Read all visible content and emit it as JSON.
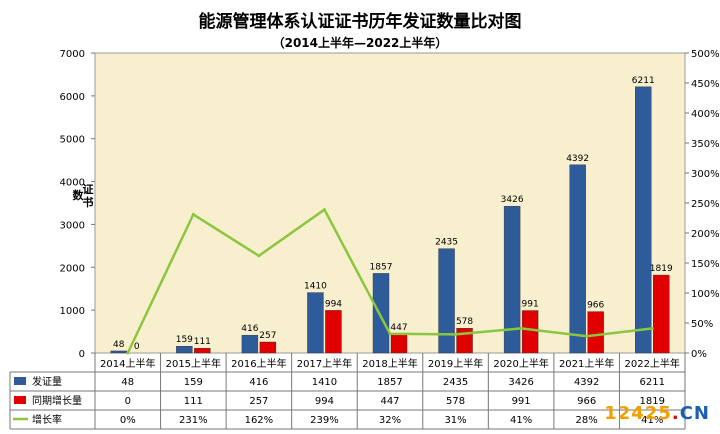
{
  "chart_data": {
    "type": "bar",
    "title": "能源管理体系认证证书历年发证数量比对图",
    "subtitle": "（2014上半年—2022上半年）",
    "ylabel": "证书数",
    "categories": [
      "2014上半年",
      "2015上半年",
      "2016上半年",
      "2017上半年",
      "2018上半年",
      "2019上半年",
      "2020上半年",
      "2021上半年",
      "2022上半年"
    ],
    "series": [
      {
        "name": "发证量",
        "kind": "bar",
        "axis": "left",
        "color": "#2e5c9a",
        "values": [
          48,
          159,
          416,
          1410,
          1857,
          2435,
          3426,
          4392,
          6211
        ]
      },
      {
        "name": "同期增长量",
        "kind": "bar",
        "axis": "left",
        "color": "#e00000",
        "values": [
          0,
          111,
          257,
          994,
          447,
          578,
          991,
          966,
          1819
        ]
      },
      {
        "name": "增长率",
        "kind": "line",
        "axis": "right",
        "color": "#8cc63f",
        "values": [
          0,
          231,
          162,
          239,
          32,
          31,
          41,
          28,
          41
        ],
        "labels": [
          "0%",
          "231%",
          "162%",
          "239%",
          "32%",
          "31%",
          "41%",
          "28%",
          "41%"
        ]
      }
    ],
    "bar_labels": {
      "发证量": [
        "48",
        "159",
        "416",
        "1410",
        "1857",
        "2435",
        "3426",
        "4392",
        "6211"
      ],
      "同期增长量": [
        "0",
        "111",
        "257",
        "994",
        "447",
        "578",
        "991",
        "966",
        "1819"
      ]
    },
    "ylim": [
      0,
      7000
    ],
    "yticks": [
      "0",
      "1000",
      "2000",
      "3000",
      "4000",
      "5000",
      "6000",
      "7000"
    ],
    "y2lim": [
      0,
      500
    ],
    "y2ticks": [
      "0%",
      "50%",
      "100%",
      "150%",
      "200%",
      "250%",
      "300%",
      "350%",
      "400%",
      "450%",
      "500%"
    ],
    "grid": false,
    "legend": "data-table-left",
    "plot_bg": "#f8efcf"
  },
  "watermark": {
    "num": "12425",
    "dot": ".",
    "cn": "CN"
  }
}
